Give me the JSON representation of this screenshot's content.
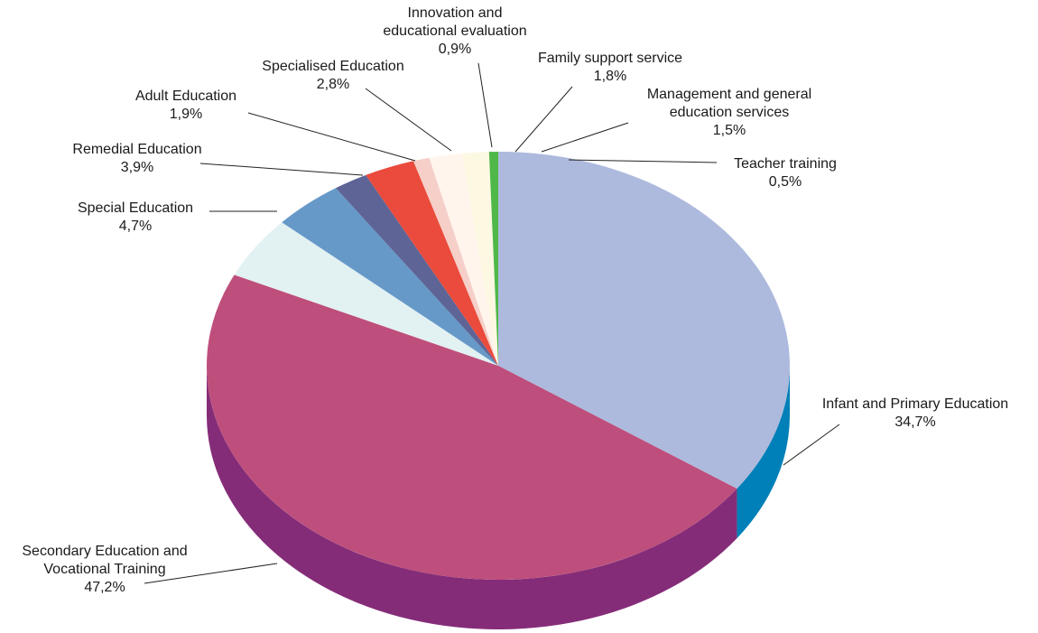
{
  "chart_data": {
    "type": "pie",
    "style": "3d",
    "title": "",
    "unit": "%",
    "slices": [
      {
        "name": "Infant and Primary Education",
        "label_lines": [
          "Infant and Primary Education"
        ],
        "value": 34.7,
        "value_label": "34,7%",
        "color": "#adbadd",
        "side_color": "#0080b8"
      },
      {
        "name": "Secondary Education and Vocational Training",
        "label_lines": [
          "Secondary Education and",
          "Vocational Training"
        ],
        "value": 47.2,
        "value_label": "47,2%",
        "color": "#be4e7c",
        "side_color": "#852c78"
      },
      {
        "name": "Special Education",
        "label_lines": [
          "Special Education"
        ],
        "value": 4.7,
        "value_label": "4,7%",
        "color": "#e2f1f1",
        "side_color": "#c4dede"
      },
      {
        "name": "Remedial Education",
        "label_lines": [
          "Remedial Education"
        ],
        "value": 3.9,
        "value_label": "3,9%",
        "color": "#6699c8",
        "side_color": "#4d7aa6"
      },
      {
        "name": "Adult Education",
        "label_lines": [
          "Adult Education"
        ],
        "value": 1.9,
        "value_label": "1,9%",
        "color": "#5e6496",
        "side_color": "#474c78"
      },
      {
        "name": "Specialised Education",
        "label_lines": [
          "Specialised Education"
        ],
        "value": 2.8,
        "value_label": "2,8%",
        "color": "#ea4b3c",
        "side_color": "#b8362b"
      },
      {
        "name": "Innovation and educational evaluation",
        "label_lines": [
          "Innovation and",
          "educational evaluation"
        ],
        "value": 0.9,
        "value_label": "0,9%",
        "color": "#f5cfc8",
        "side_color": "#d9b0a8"
      },
      {
        "name": "Family support service",
        "label_lines": [
          "Family support service"
        ],
        "value": 1.8,
        "value_label": "1,8%",
        "color": "#fff5ec",
        "side_color": "#e8dccf"
      },
      {
        "name": "Management and general education services",
        "label_lines": [
          "Management and general",
          "education services"
        ],
        "value": 1.5,
        "value_label": "1,5%",
        "color": "#fcf8e2",
        "side_color": "#e5e0c2"
      },
      {
        "name": "Teacher training",
        "label_lines": [
          "Teacher training"
        ],
        "value": 0.5,
        "value_label": "0,5%",
        "color": "#4fb848",
        "side_color": "#3a9435"
      }
    ]
  }
}
